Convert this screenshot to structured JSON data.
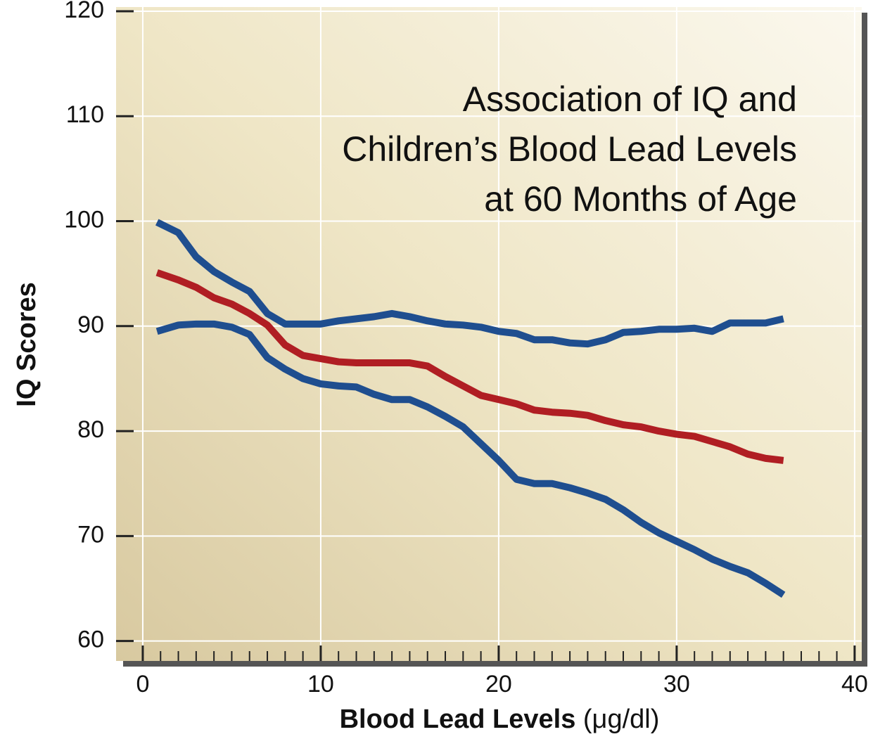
{
  "chart_data": {
    "type": "line",
    "title": [
      "Association of IQ and",
      "Children’s Blood Lead Levels",
      "at 60 Months of Age"
    ],
    "xlabel": [
      "Blood Lead Levels",
      "(μg/dl)"
    ],
    "ylabel": "IQ Scores",
    "x": [
      0.8,
      2,
      3,
      4,
      5,
      6,
      7,
      8,
      9,
      10,
      11,
      12,
      13,
      14,
      15,
      16,
      17,
      18,
      19,
      20,
      21,
      22,
      23,
      24,
      25,
      26,
      27,
      28,
      29,
      30,
      31,
      32,
      33,
      34,
      35,
      36
    ],
    "series": [
      {
        "color": "#1f4e8f",
        "values": [
          99.9,
          98.9,
          96.6,
          95.2,
          94.2,
          93.3,
          91.2,
          90.2,
          90.2,
          90.2,
          90.5,
          90.7,
          90.9,
          91.2,
          90.9,
          90.5,
          90.2,
          90.1,
          89.9,
          89.5,
          89.3,
          88.7,
          88.7,
          88.4,
          88.3,
          88.7,
          89.4,
          89.5,
          89.7,
          89.7,
          89.8,
          89.5,
          90.3,
          90.3,
          90.3,
          90.7
        ]
      },
      {
        "color": "#b01e23",
        "values": [
          95.1,
          94.4,
          93.7,
          92.7,
          92.1,
          91.2,
          90.1,
          88.2,
          87.2,
          86.9,
          86.6,
          86.5,
          86.5,
          86.5,
          86.5,
          86.2,
          85.2,
          84.3,
          83.4,
          83.0,
          82.6,
          82.0,
          81.8,
          81.7,
          81.5,
          81.0,
          80.6,
          80.4,
          80.0,
          79.7,
          79.5,
          79.0,
          78.5,
          77.8,
          77.4,
          77.2
        ]
      },
      {
        "color": "#1f4e8f",
        "values": [
          89.5,
          90.1,
          90.2,
          90.2,
          89.9,
          89.2,
          87.0,
          85.9,
          85.0,
          84.5,
          84.3,
          84.2,
          83.5,
          83.0,
          83.0,
          82.3,
          81.4,
          80.4,
          78.8,
          77.2,
          75.4,
          75.0,
          75.0,
          74.6,
          74.1,
          73.5,
          72.5,
          71.3,
          70.3,
          69.5,
          68.7,
          67.8,
          67.1,
          66.5,
          65.5,
          64.4
        ]
      }
    ],
    "xlim": [
      -1.5,
      40.4
    ],
    "ylim": [
      58.1,
      120.4
    ],
    "xticks": [
      0,
      10,
      20,
      30,
      40
    ],
    "xminorticks": [
      1,
      2,
      3,
      4,
      5,
      6,
      7,
      8,
      9,
      11,
      12,
      13,
      14,
      15,
      16,
      17,
      18,
      19,
      21,
      22,
      23,
      24,
      25,
      26,
      27,
      28,
      29,
      31,
      32,
      33,
      34,
      35,
      36,
      37,
      38,
      39
    ],
    "yticks": [
      60,
      70,
      80,
      90,
      100,
      110,
      120
    ],
    "grid": true
  }
}
